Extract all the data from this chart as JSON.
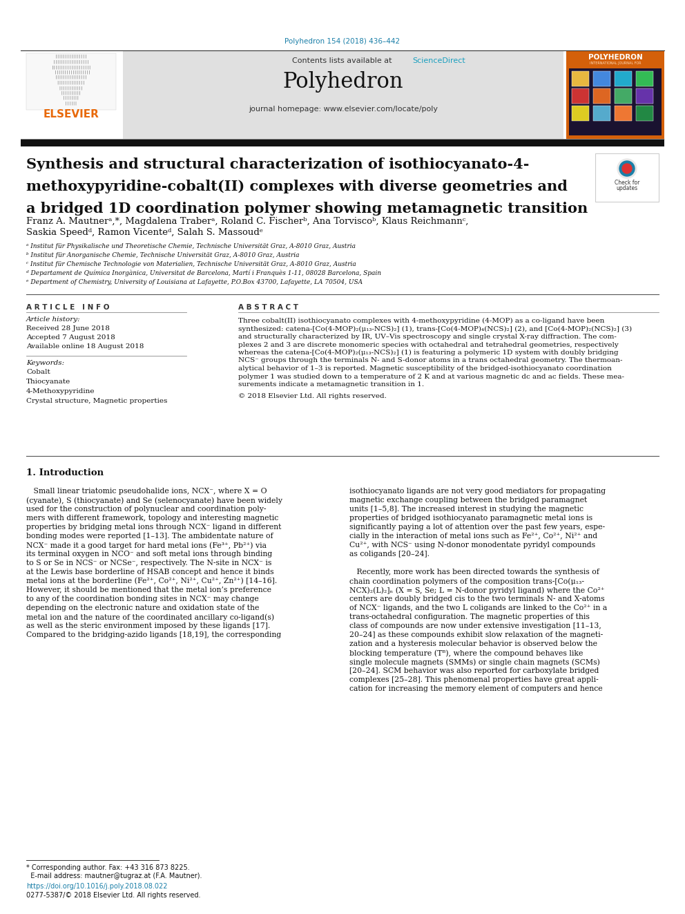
{
  "journal_ref": "Polyhedron 154 (2018) 436–442",
  "journal_ref_color": "#1a7fa8",
  "header_bg": "#e0e0e0",
  "contents_text": "Contents lists available at ",
  "sciencedirect_text": "ScienceDirect",
  "sciencedirect_color": "#1a9fbf",
  "journal_name": "Polyhedron",
  "homepage_text": "journal homepage: www.elsevier.com/locate/poly",
  "black_bar_color": "#111111",
  "title_line1": "Synthesis and structural characterization of isothiocyanato-4-",
  "title_line2": "methoxypyridine-cobalt(II) complexes with diverse geometries and",
  "title_line3": "a bridged 1D coordination polymer showing metamagnetic transition",
  "authors_line1": "Franz A. Mautnerᵃ,*, Magdalena Traberᵃ, Roland C. Fischerᵇ, Ana Torviscoᵇ, Klaus Reichmannᶜ,",
  "authors_line2": "Saskia Speedᵈ, Ramon Vicenteᵈ, Salah S. Massoudᵉ",
  "affiliations": [
    "ᵃ Institut für Physikalische und Theoretische Chemie, Technische Universität Graz, A-8010 Graz, Austria",
    "ᵇ Institut für Anorganische Chemie, Technische Universität Graz, A-8010 Graz, Austria",
    "ᶜ Institut für Chemische Technologie von Materialien, Technische Universität Graz, A-8010 Graz, Austria",
    "ᵈ Departament de Química Inorgànica, Universitat de Barcelona, Martí i Franquès 1-11, 08028 Barcelona, Spain",
    "ᵉ Department of Chemistry, University of Louisiana at Lafayette, P.O.Box 43700, Lafayette, LA 70504, USA"
  ],
  "article_info_title": "A R T I C L E   I N F O",
  "article_history_label": "Article history:",
  "received_text": "Received 28 June 2018",
  "accepted_text": "Accepted 7 August 2018",
  "available_text": "Available online 18 August 2018",
  "keywords_label": "Keywords:",
  "keywords": [
    "Cobalt",
    "Thiocyanate",
    "4-Methoxypyridine",
    "Crystal structure, Magnetic properties"
  ],
  "abstract_title": "A B S T R A C T",
  "abstract_lines": [
    "Three cobalt(II) isothiocyanato complexes with 4-methoxypyridine (4-MOP) as a co-ligand have been",
    "synthesized: catena-[Co(4-MOP)₂(μ₁₃-NCS)₂] (1), trans-[Co(4-MOP)₄(NCS)₂] (2), and [Co(4-MOP)₂(NCS)₂] (3)",
    "and structurally characterized by IR, UV–Vis spectroscopy and single crystal X-ray diffraction. The com-",
    "plexes 2 and 3 are discrete monomeric species with octahedral and tetrahedral geometries, respectively",
    "whereas the catena-[Co(4-MOP)₂(μ₁₃-NCS)₂] (1) is featuring a polymeric 1D system with doubly bridging",
    "NCS⁻ groups through the terminals N- and S-donor atoms in a trans octahedral geometry. The thermoan-",
    "alytical behavior of 1–3 is reported. Magnetic susceptibility of the bridged-isothiocyanato coordination",
    "polymer 1 was studied down to a temperature of 2 K and at various magnetic dc and ac fields. These mea-",
    "surements indicate a metamagnetic transition in 1.",
    "",
    "© 2018 Elsevier Ltd. All rights reserved."
  ],
  "intro_title": "1. Introduction",
  "col1_lines": [
    "   Small linear triatomic pseudohalide ions, NCX⁻, where X = O",
    "(cyanate), S (thiocyanate) and Se (selenocyanate) have been widely",
    "used for the construction of polynuclear and coordination poly-",
    "mers with different framework, topology and interesting magnetic",
    "properties by bridging metal ions through NCX⁻ ligand in different",
    "bonding modes were reported [1–13]. The ambidentate nature of",
    "NCX⁻ made it a good target for hard metal ions (Fe³⁺, Pb²⁺) via",
    "its terminal oxygen in NCO⁻ and soft metal ions through binding",
    "to S or Se in NCS⁻ or NCSe⁻, respectively. The N-site in NCX⁻ is",
    "at the Lewis base borderline of HSAB concept and hence it binds",
    "metal ions at the borderline (Fe²⁺, Co²⁺, Ni²⁺, Cu²⁺, Zn²⁺) [14–16].",
    "However, it should be mentioned that the metal ion’s preference",
    "to any of the coordination bonding sites in NCX⁻ may change",
    "depending on the electronic nature and oxidation state of the",
    "metal ion and the nature of the coordinated ancillary co-ligand(s)",
    "as well as the steric environment imposed by these ligands [17].",
    "Compared to the bridging-azido ligands [18,19], the corresponding"
  ],
  "col2_lines": [
    "isothiocyanato ligands are not very good mediators for propagating",
    "magnetic exchange coupling between the bridged paramagnet",
    "units [1–5,8]. The increased interest in studying the magnetic",
    "properties of bridged isothiocyanato paramagnetic metal ions is",
    "significantly paying a lot of attention over the past few years, espe-",
    "cially in the interaction of metal ions such as Fe²⁺, Co²⁺, Ni²⁺ and",
    "Cu²⁺, with NCS⁻ using N-donor monodentate pyridyl compounds",
    "as coligands [20–24].",
    "",
    "   Recently, more work has been directed towards the synthesis of",
    "chain coordination polymers of the composition trans-[Co(μ₁₃-",
    "NCX)₂(L)₂]ₙ (X = S, Se; L = N-donor pyridyl ligand) where the Co²⁺",
    "centers are doubly bridged cis to the two terminals N- and X-atoms",
    "of NCX⁻ ligands, and the two L coligands are linked to the Co²⁺ in a",
    "trans-octahedral configuration. The magnetic properties of this",
    "class of compounds are now under extensive investigation [11–13,",
    "20–24] as these compounds exhibit slow relaxation of the magneti-",
    "zation and a hysteresis molecular behavior is observed below the",
    "blocking temperature (Tᴮ), where the compound behaves like",
    "single molecule magnets (SMMs) or single chain magnets (SCMs)",
    "[20–24]. SCM behavior was also reported for carboxylate bridged",
    "complexes [25–28]. This phenomenal properties have great appli-",
    "cation for increasing the memory element of computers and hence"
  ],
  "footnote_line1": "* Corresponding author. Fax: +43 316 873 8225.",
  "footnote_line2": "  E-mail address: mautner@tugraz.at (F.A. Mautner).",
  "doi_text": "https://doi.org/10.1016/j.poly.2018.08.022",
  "issn_text": "0277-5387/© 2018 Elsevier Ltd. All rights reserved.",
  "bg_color": "#ffffff",
  "elsevier_orange": "#e8690a",
  "section_header_color": "#404040",
  "divider_color": "#888888",
  "cover_orange": "#d4600a",
  "cover_dark": "#1a1a3a"
}
